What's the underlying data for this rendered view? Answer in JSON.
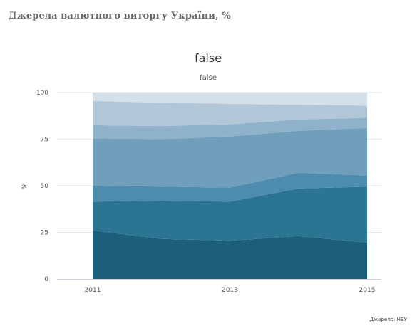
{
  "page": {
    "title": "Джерела валютного виторгу України, %",
    "source": "Джерело: НБУ"
  },
  "chart_data": {
    "type": "area",
    "stacked": true,
    "title": "false",
    "subtitle": "false",
    "xlabel": "",
    "ylabel": "%",
    "x": [
      2011,
      2012,
      2013,
      2014,
      2015
    ],
    "x_ticks": [
      "2011",
      "2013",
      "2015"
    ],
    "ylim": [
      0,
      100
    ],
    "y_ticks": [
      0,
      25,
      50,
      75,
      100
    ],
    "grid": true,
    "legend": "none",
    "series": [
      {
        "values": [
          26,
          21.5,
          20.5,
          23,
          19.5
        ],
        "color": "#1c5f7b"
      },
      {
        "values": [
          15.5,
          20.5,
          21,
          25.5,
          30
        ],
        "color": "#2c7592"
      },
      {
        "values": [
          8.5,
          7.5,
          7.5,
          8.5,
          6
        ],
        "color": "#4d8cac"
      },
      {
        "values": [
          25.5,
          25.5,
          27.5,
          22.5,
          25.5
        ],
        "color": "#709fbc"
      },
      {
        "values": [
          7,
          7,
          6.5,
          6,
          5.5
        ],
        "color": "#8fb2ca"
      },
      {
        "values": [
          13,
          12.5,
          11,
          8,
          6.5
        ],
        "color": "#b2c7d8"
      },
      {
        "values": [
          4.5,
          5.5,
          6,
          6.5,
          7
        ],
        "color": "#d3e0ea"
      }
    ]
  }
}
